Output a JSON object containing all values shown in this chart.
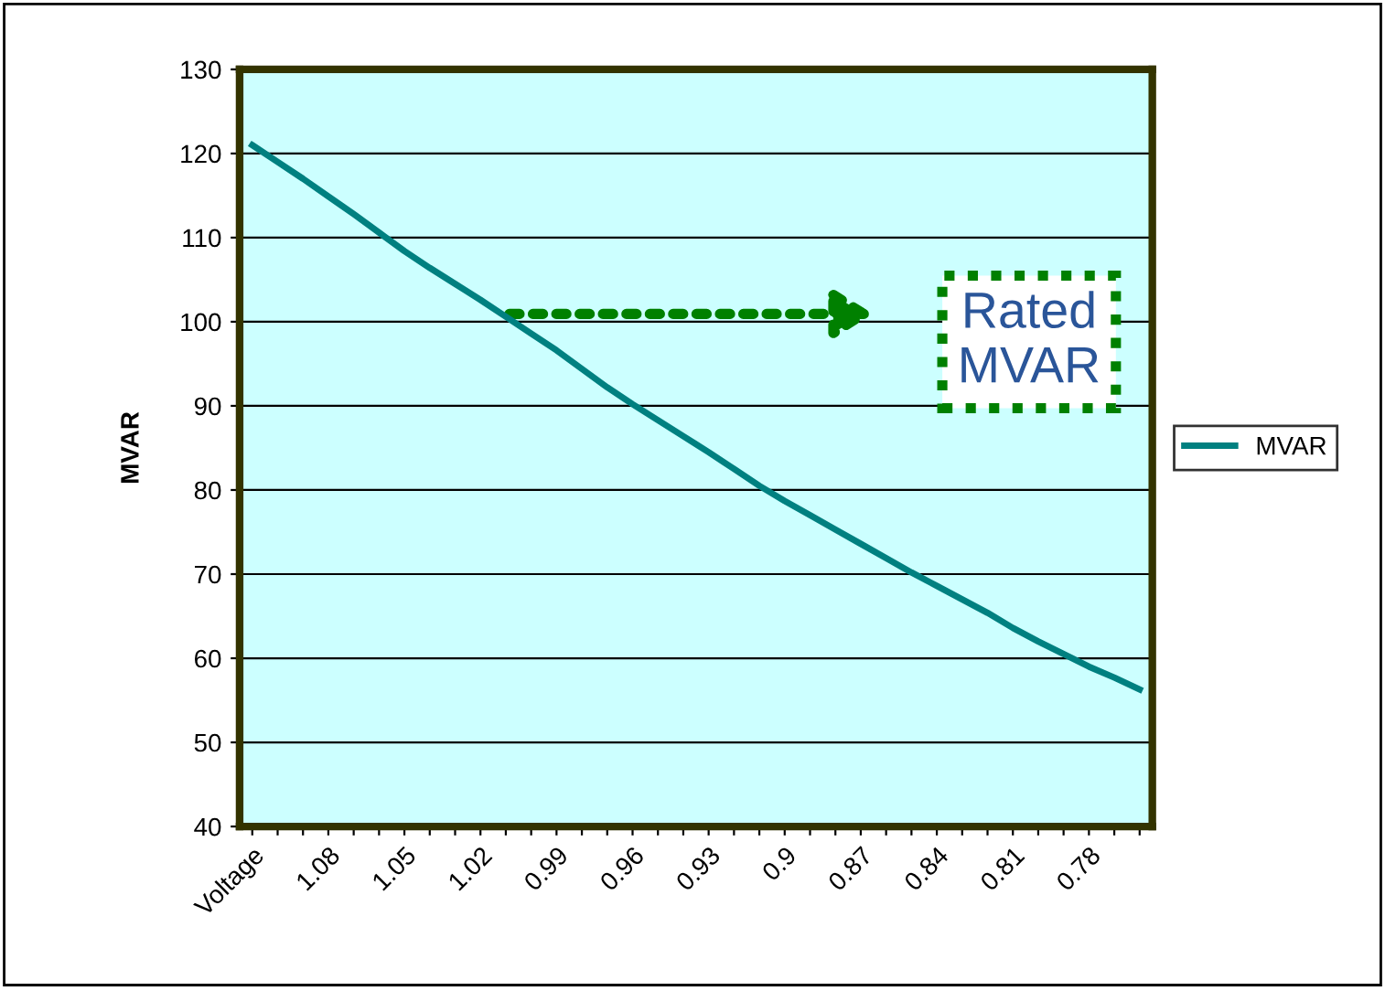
{
  "chart_data": {
    "type": "line",
    "ylabel": "MVAR",
    "categories": [
      "Voltage",
      null,
      null,
      "1.08",
      null,
      null,
      "1.05",
      null,
      null,
      "1.02",
      null,
      null,
      "0.99",
      null,
      null,
      "0.96",
      null,
      null,
      "0.93",
      null,
      null,
      "0.9",
      null,
      null,
      "0.87",
      null,
      null,
      "0.84",
      null,
      null,
      "0.81",
      null,
      null,
      "0.78",
      null,
      null
    ],
    "series": [
      {
        "name": "MVAR",
        "color": "#008080",
        "values": [
          121.0,
          119.0,
          117.0,
          114.9,
          112.8,
          110.6,
          108.4,
          106.4,
          104.5,
          102.6,
          100.6,
          98.6,
          96.6,
          94.4,
          92.2,
          90.2,
          88.3,
          86.4,
          84.5,
          82.5,
          80.5,
          78.7,
          77.0,
          75.3,
          73.6,
          71.9,
          70.2,
          68.6,
          67.0,
          65.4,
          63.6,
          62.0,
          60.5,
          59.0,
          57.7,
          56.3
        ]
      }
    ],
    "ylim": [
      40,
      130
    ],
    "yticks": [
      40,
      50,
      60,
      70,
      80,
      90,
      100,
      110,
      120,
      130
    ],
    "grid": "y",
    "legend": "right",
    "marker": "none",
    "line_style": "solid",
    "annotations": [
      "Rated\nMVAR"
    ]
  }
}
